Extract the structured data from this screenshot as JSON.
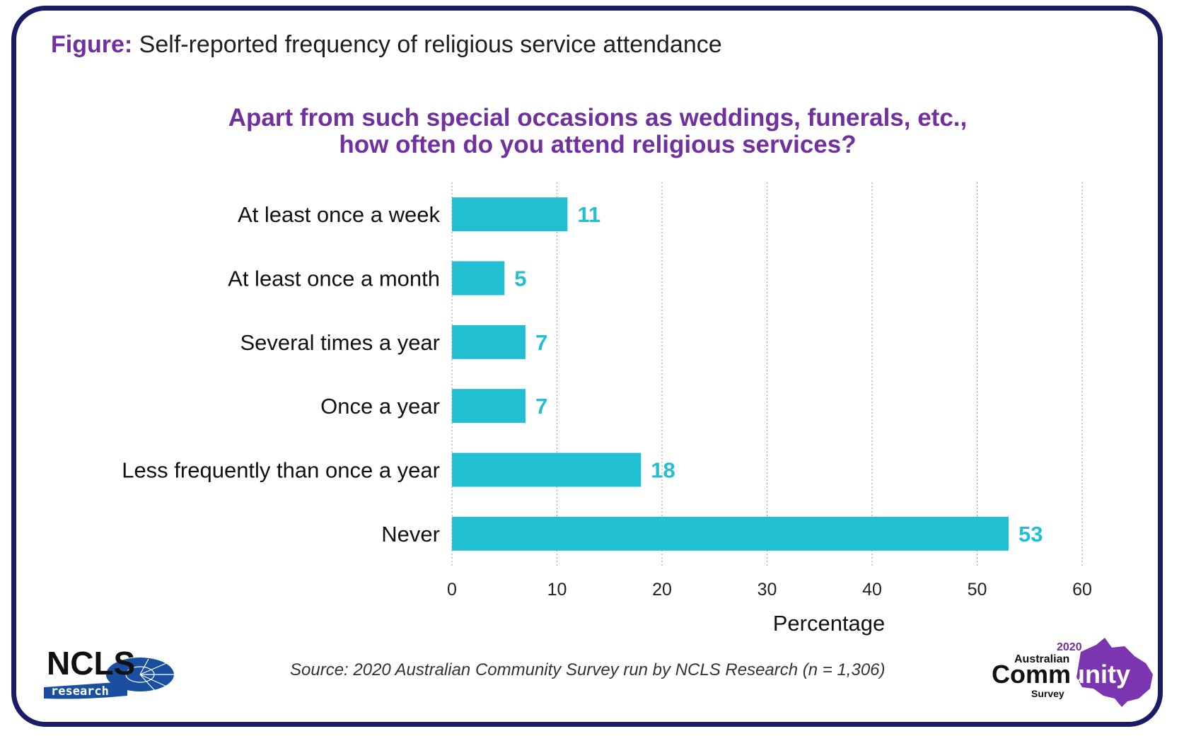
{
  "figure_title": {
    "lead": "Figure:",
    "text": "Self-reported frequency of religious service attendance"
  },
  "question": {
    "line1": "Apart from such special occasions as weddings, funerals, etc.,",
    "line2": "how often do you attend religious services?"
  },
  "chart_data": {
    "type": "bar",
    "orientation": "horizontal",
    "categories": [
      "At least once a week",
      "At least once a month",
      "Several times a year",
      "Once a year",
      "Less frequently than once a year",
      "Never"
    ],
    "values": [
      11,
      5,
      7,
      7,
      18,
      53
    ],
    "data_labels": [
      "11",
      "5",
      "7",
      "7",
      "18",
      "53"
    ],
    "xlabel": "Percentage",
    "ylabel": "",
    "xlim": [
      0,
      60
    ],
    "xticks": [
      0,
      10,
      20,
      30,
      40,
      50,
      60
    ],
    "grid": "vertical dotted",
    "bar_color": "#22bfd3",
    "label_color": "#22bfd3"
  },
  "source": "Source: 2020 Australian Community Survey run by NCLS Research (n = 1,306)",
  "logo_ncls": {
    "main": "NCLS",
    "sub": "research"
  },
  "logo_acs": {
    "year": "2020",
    "line1": "Australian",
    "line2a": "Comm",
    "line2b": "unity",
    "line3": "Survey"
  },
  "colors": {
    "accent": "#7030a0",
    "border": "#1a1d66",
    "bar": "#22bfd3",
    "ncls_blue": "#1a4fa0"
  }
}
